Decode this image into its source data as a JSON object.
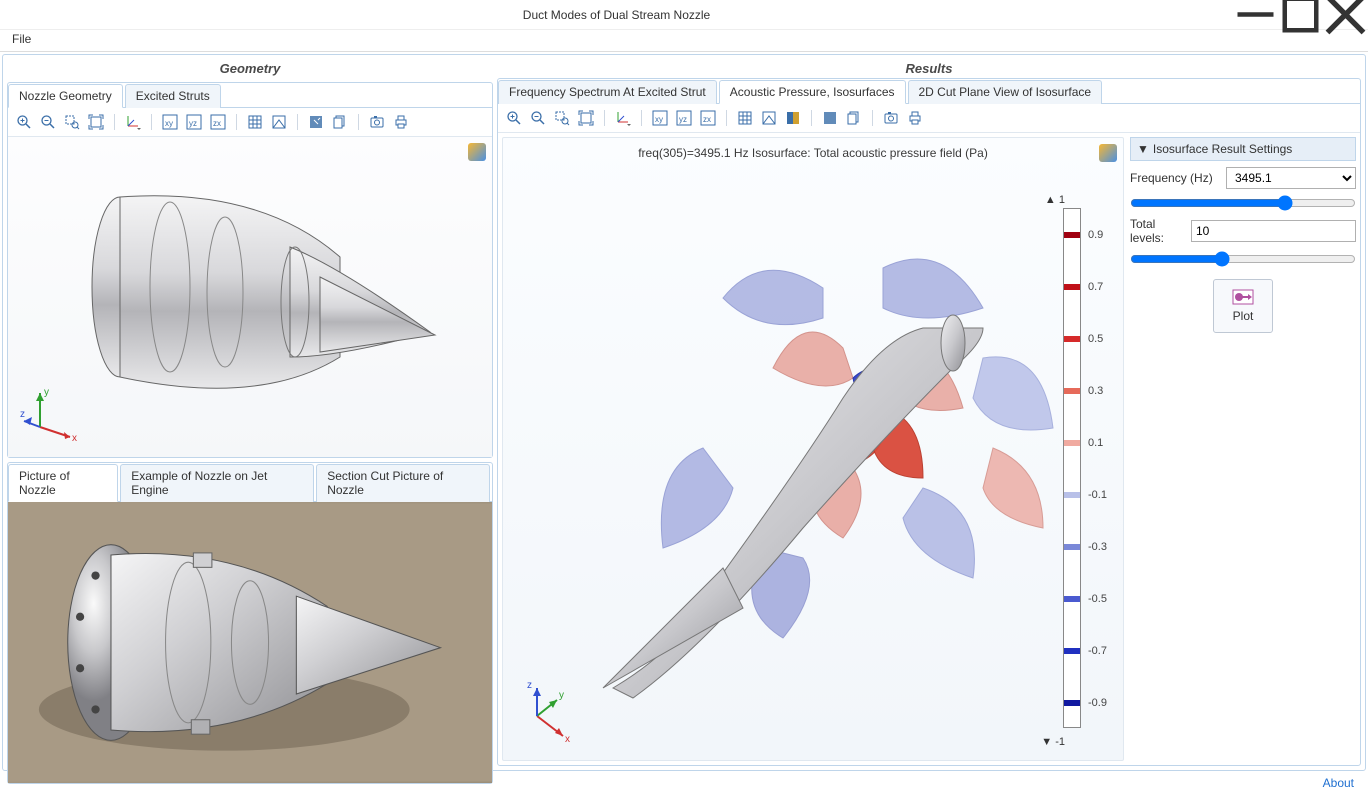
{
  "window": {
    "title": "Duct Modes of Dual Stream Nozzle"
  },
  "menu": {
    "file": "File"
  },
  "panels": {
    "left_title": "Geometry",
    "right_title": "Results"
  },
  "geometry_tabs": {
    "nozzle_geometry": "Nozzle Geometry",
    "excited_struts": "Excited Struts"
  },
  "picture_tabs": {
    "picture": "Picture of Nozzle",
    "jet_engine": "Example of Nozzle on Jet Engine",
    "section_cut": "Section Cut Picture of Nozzle"
  },
  "results_tabs": {
    "spectrum": "Frequency Spectrum At Excited Strut",
    "isosurfaces": "Acoustic Pressure, Isosurfaces",
    "cut_plane": "2D Cut Plane View of Isosurface"
  },
  "result_plot": {
    "title": "freq(305)=3495.1 Hz   Isosurface: Total acoustic pressure field (Pa)",
    "top_label": "1",
    "bottom_label": "-1",
    "ticks": [
      "0.9",
      "0.7",
      "0.5",
      "0.3",
      "0.1",
      "-0.1",
      "-0.3",
      "-0.5",
      "-0.7",
      "-0.9"
    ],
    "tick_colors": [
      "#a00010",
      "#c01018",
      "#d62a2a",
      "#e66a5a",
      "#f0aaa0",
      "#b8c0e8",
      "#7a88d8",
      "#4a5ad0",
      "#2030c0",
      "#1018a0"
    ]
  },
  "settings": {
    "header": "Isosurface Result Settings",
    "frequency_label": "Frequency (Hz)",
    "frequency_value": "3495.1",
    "levels_label": "Total levels:",
    "levels_value": "10",
    "plot_label": "Plot"
  },
  "triad": {
    "x": "x",
    "y": "y",
    "z": "z"
  },
  "footer": {
    "about": "About"
  },
  "colors": {
    "accent": "#1f6fd0",
    "panel_border": "#bfd5ea",
    "viewer_bg_top": "#fbfdff",
    "viewer_bg_bottom": "#f2f6fa",
    "nozzle_light": "#e8e8ea",
    "nozzle_dark": "#a0a0a4",
    "iso_red": "#d94a3a",
    "iso_pink": "#e8a8a0",
    "iso_blue_light": "#a8b0e0",
    "iso_blue_dark": "#3040c8"
  }
}
